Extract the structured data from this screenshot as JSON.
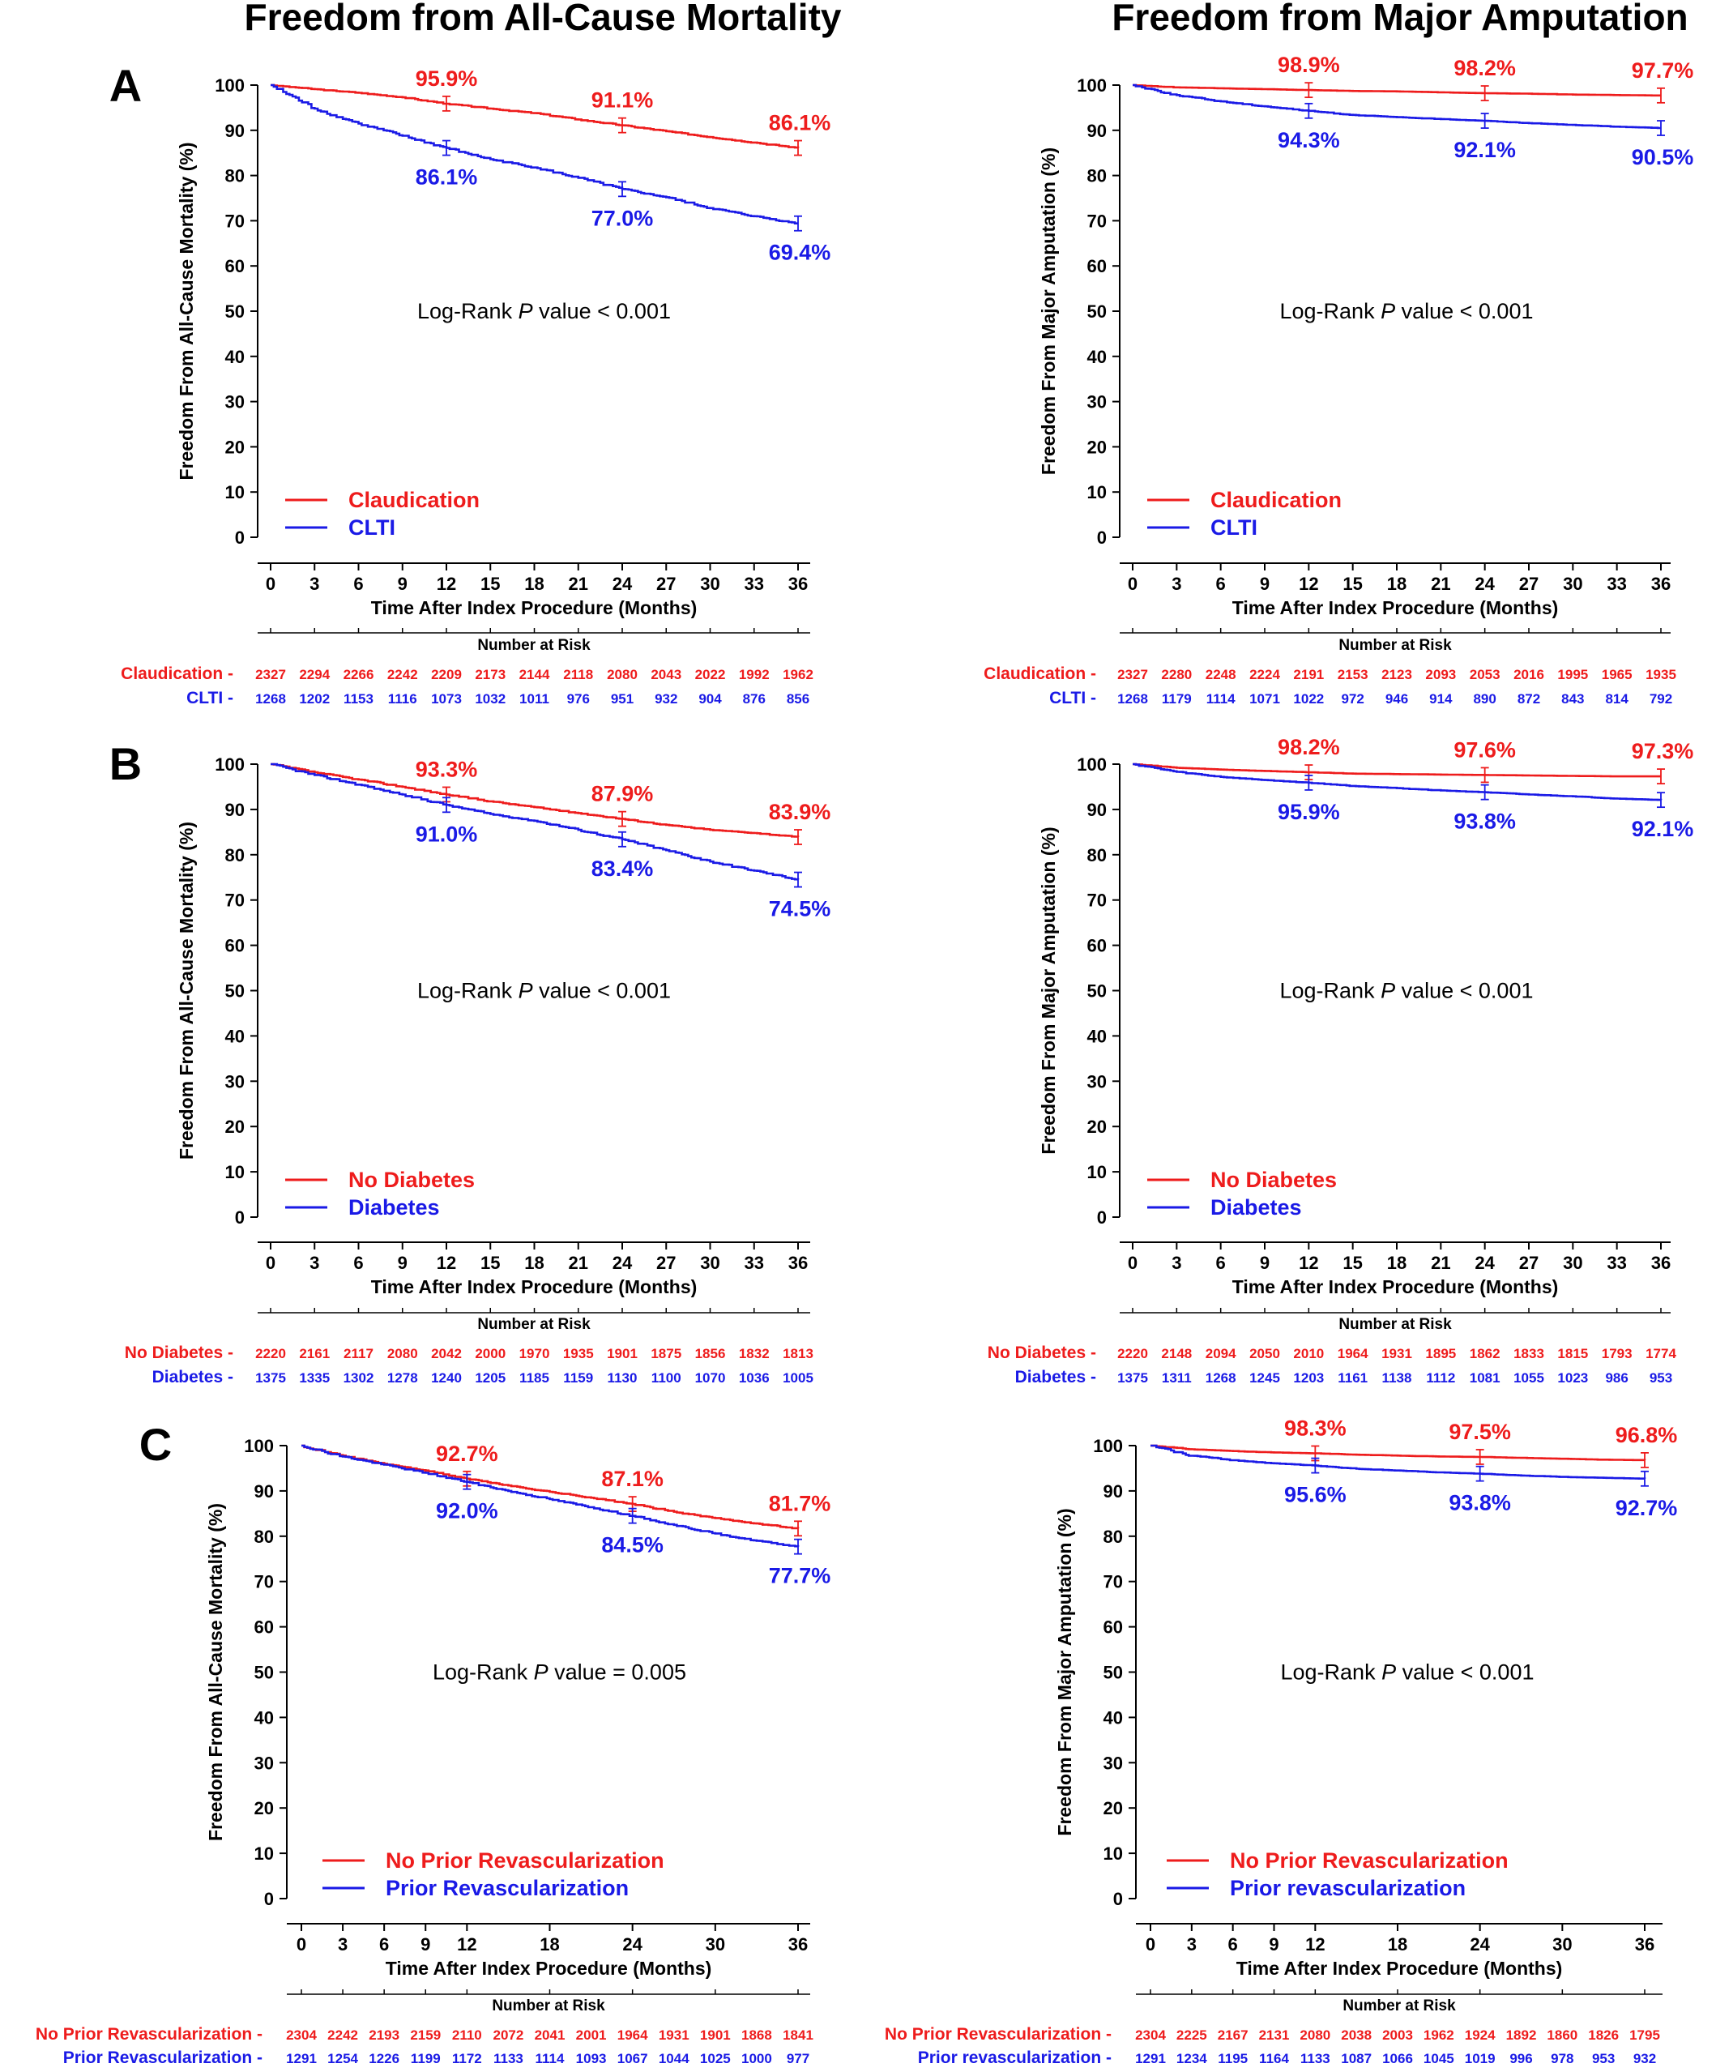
{
  "column_titles": [
    "Freedom from All-Cause Mortality",
    "Freedom from Major Amputation"
  ],
  "panel_letters": [
    "A",
    "B",
    "C"
  ],
  "colors": {
    "red": "#ee1c1c",
    "blue": "#1a1ae6"
  },
  "chart_data": [
    {
      "type": "line",
      "panel": "A",
      "column": "left",
      "ylabel": "Freedom From All-Cause Mortality (%)",
      "xlabel": "Time After Index Procedure (Months)",
      "xlim": [
        0,
        36
      ],
      "ylim": [
        0,
        100
      ],
      "xticks": [
        0,
        3,
        6,
        9,
        12,
        15,
        18,
        21,
        24,
        27,
        30,
        33,
        36
      ],
      "yticks": [
        0,
        10,
        20,
        30,
        40,
        50,
        60,
        70,
        80,
        90,
        100
      ],
      "annotation": {
        "pre": "Log-Rank ",
        "italic": "P",
        "post": " value < 0.001"
      },
      "series": [
        {
          "name": "Claudication",
          "color": "#ee1c1c",
          "x": [
            0,
            3,
            6,
            9,
            12,
            15,
            18,
            21,
            24,
            27,
            30,
            33,
            36
          ],
          "y": [
            100,
            99.1,
            98.3,
            97.3,
            95.9,
            94.8,
            93.8,
            92.4,
            91.1,
            89.8,
            88.5,
            87.3,
            86.1
          ],
          "labels": [
            {
              "x": 12,
              "y": 95.9,
              "text": "95.9%"
            },
            {
              "x": 24,
              "y": 91.1,
              "text": "91.1%"
            },
            {
              "x": 36,
              "y": 86.1,
              "text": "86.1%"
            }
          ],
          "risk": [
            2327,
            2294,
            2266,
            2242,
            2209,
            2173,
            2144,
            2118,
            2080,
            2043,
            2022,
            1992,
            1962
          ]
        },
        {
          "name": "CLTI",
          "color": "#1a1ae6",
          "x": [
            0,
            3,
            6,
            9,
            12,
            15,
            18,
            21,
            24,
            27,
            30,
            33,
            36
          ],
          "y": [
            100,
            94.8,
            91.5,
            88.8,
            86.1,
            83.6,
            81.8,
            79.5,
            77.0,
            75.2,
            72.8,
            71.0,
            69.4
          ],
          "labels": [
            {
              "x": 12,
              "y": 86.1,
              "text": "86.1%"
            },
            {
              "x": 24,
              "y": 77.0,
              "text": "77.0%"
            },
            {
              "x": 36,
              "y": 69.4,
              "text": "69.4%"
            }
          ],
          "risk": [
            1268,
            1202,
            1153,
            1116,
            1073,
            1032,
            1011,
            976,
            951,
            932,
            904,
            876,
            856
          ]
        }
      ],
      "risk_title": "Number at Risk"
    },
    {
      "type": "line",
      "panel": "A",
      "column": "right",
      "ylabel": "Freedom From Major Amputation (%)",
      "xlabel": "Time After Index Procedure (Months)",
      "xlim": [
        0,
        36
      ],
      "ylim": [
        0,
        100
      ],
      "xticks": [
        0,
        3,
        6,
        9,
        12,
        15,
        18,
        21,
        24,
        27,
        30,
        33,
        36
      ],
      "yticks": [
        0,
        10,
        20,
        30,
        40,
        50,
        60,
        70,
        80,
        90,
        100
      ],
      "annotation": {
        "pre": "Log-Rank ",
        "italic": "P",
        "post": " value < 0.001"
      },
      "series": [
        {
          "name": "Claudication",
          "color": "#ee1c1c",
          "x": [
            0,
            3,
            6,
            9,
            12,
            15,
            18,
            21,
            24,
            27,
            30,
            33,
            36
          ],
          "y": [
            100,
            99.5,
            99.3,
            99.1,
            98.9,
            98.7,
            98.6,
            98.4,
            98.2,
            98.1,
            97.9,
            97.8,
            97.7
          ],
          "labels": [
            {
              "x": 12,
              "y": 98.9,
              "text": "98.9%"
            },
            {
              "x": 24,
              "y": 98.2,
              "text": "98.2%"
            },
            {
              "x": 36,
              "y": 97.7,
              "text": "97.7%"
            }
          ],
          "risk": [
            2327,
            2280,
            2248,
            2224,
            2191,
            2153,
            2123,
            2093,
            2053,
            2016,
            1995,
            1965,
            1935
          ]
        },
        {
          "name": "CLTI",
          "color": "#1a1ae6",
          "x": [
            0,
            3,
            6,
            9,
            12,
            15,
            18,
            21,
            24,
            27,
            30,
            33,
            36
          ],
          "y": [
            100,
            97.8,
            96.4,
            95.3,
            94.3,
            93.4,
            92.9,
            92.5,
            92.1,
            91.6,
            91.2,
            90.8,
            90.5
          ],
          "labels": [
            {
              "x": 12,
              "y": 94.3,
              "text": "94.3%"
            },
            {
              "x": 24,
              "y": 92.1,
              "text": "92.1%"
            },
            {
              "x": 36,
              "y": 90.5,
              "text": "90.5%"
            }
          ],
          "risk": [
            1268,
            1179,
            1114,
            1071,
            1022,
            972,
            946,
            914,
            890,
            872,
            843,
            814,
            792
          ]
        }
      ],
      "risk_title": "Number at Risk"
    },
    {
      "type": "line",
      "panel": "B",
      "column": "left",
      "ylabel": "Freedom From All-Cause Mortality (%)",
      "xlabel": "Time After Index Procedure (Months)",
      "xlim": [
        0,
        36
      ],
      "ylim": [
        0,
        100
      ],
      "xticks": [
        0,
        3,
        6,
        9,
        12,
        15,
        18,
        21,
        24,
        27,
        30,
        33,
        36
      ],
      "yticks": [
        0,
        10,
        20,
        30,
        40,
        50,
        60,
        70,
        80,
        90,
        100
      ],
      "annotation": {
        "pre": "Log-Rank ",
        "italic": "P",
        "post": " value < 0.001"
      },
      "series": [
        {
          "name": "No Diabetes",
          "color": "#ee1c1c",
          "x": [
            0,
            3,
            6,
            9,
            12,
            15,
            18,
            21,
            24,
            27,
            30,
            33,
            36
          ],
          "y": [
            100,
            98.2,
            96.6,
            95.0,
            93.3,
            91.8,
            90.5,
            89.2,
            87.9,
            86.6,
            85.5,
            84.8,
            83.9
          ],
          "labels": [
            {
              "x": 12,
              "y": 93.3,
              "text": "93.3%"
            },
            {
              "x": 24,
              "y": 87.9,
              "text": "87.9%"
            },
            {
              "x": 36,
              "y": 83.9,
              "text": "83.9%"
            }
          ],
          "risk": [
            2220,
            2161,
            2117,
            2080,
            2042,
            2000,
            1970,
            1935,
            1901,
            1875,
            1856,
            1832,
            1813
          ]
        },
        {
          "name": "Diabetes",
          "color": "#1a1ae6",
          "x": [
            0,
            3,
            6,
            9,
            12,
            15,
            18,
            21,
            24,
            27,
            30,
            33,
            36
          ],
          "y": [
            100,
            97.6,
            95.5,
            93.3,
            91.0,
            89.0,
            87.5,
            85.5,
            83.4,
            81.0,
            78.5,
            76.5,
            74.5
          ],
          "labels": [
            {
              "x": 12,
              "y": 91.0,
              "text": "91.0%"
            },
            {
              "x": 24,
              "y": 83.4,
              "text": "83.4%"
            },
            {
              "x": 36,
              "y": 74.5,
              "text": "74.5%"
            }
          ],
          "risk": [
            1375,
            1335,
            1302,
            1278,
            1240,
            1205,
            1185,
            1159,
            1130,
            1100,
            1070,
            1036,
            1005
          ]
        }
      ],
      "risk_title": "Number at Risk"
    },
    {
      "type": "line",
      "panel": "B",
      "column": "right",
      "ylabel": "Freedom From Major Amputation (%)",
      "xlabel": "Time After Index Procedure (Months)",
      "xlim": [
        0,
        36
      ],
      "ylim": [
        0,
        100
      ],
      "xticks": [
        0,
        3,
        6,
        9,
        12,
        15,
        18,
        21,
        24,
        27,
        30,
        33,
        36
      ],
      "yticks": [
        0,
        10,
        20,
        30,
        40,
        50,
        60,
        70,
        80,
        90,
        100
      ],
      "annotation": {
        "pre": "Log-Rank ",
        "italic": "P",
        "post": " value < 0.001"
      },
      "series": [
        {
          "name": "No Diabetes",
          "color": "#ee1c1c",
          "x": [
            0,
            3,
            6,
            9,
            12,
            15,
            18,
            21,
            24,
            27,
            30,
            33,
            36
          ],
          "y": [
            100,
            99.2,
            98.8,
            98.5,
            98.2,
            97.9,
            97.8,
            97.7,
            97.6,
            97.5,
            97.4,
            97.3,
            97.3
          ],
          "labels": [
            {
              "x": 12,
              "y": 98.2,
              "text": "98.2%"
            },
            {
              "x": 24,
              "y": 97.6,
              "text": "97.6%"
            },
            {
              "x": 36,
              "y": 97.3,
              "text": "97.3%"
            }
          ],
          "risk": [
            2220,
            2148,
            2094,
            2050,
            2010,
            1964,
            1931,
            1895,
            1862,
            1833,
            1815,
            1793,
            1774
          ]
        },
        {
          "name": "Diabetes",
          "color": "#1a1ae6",
          "x": [
            0,
            3,
            6,
            9,
            12,
            15,
            18,
            21,
            24,
            27,
            30,
            33,
            36
          ],
          "y": [
            100,
            98.3,
            97.2,
            96.5,
            95.9,
            95.2,
            94.7,
            94.2,
            93.8,
            93.3,
            92.9,
            92.4,
            92.1
          ],
          "labels": [
            {
              "x": 12,
              "y": 95.9,
              "text": "95.9%"
            },
            {
              "x": 24,
              "y": 93.8,
              "text": "93.8%"
            },
            {
              "x": 36,
              "y": 92.1,
              "text": "92.1%"
            }
          ],
          "risk": [
            1375,
            1311,
            1268,
            1245,
            1203,
            1161,
            1138,
            1112,
            1081,
            1055,
            1023,
            986,
            953
          ]
        }
      ],
      "risk_title": "Number at Risk"
    },
    {
      "type": "line",
      "panel": "C",
      "column": "left",
      "ylabel": "Freedom From All-Cause Mortality (%)",
      "xlabel": "Time After Index Procedure (Months)",
      "xlim": [
        0,
        36
      ],
      "ylim": [
        0,
        100
      ],
      "xticks": [
        0,
        3,
        6,
        9,
        12,
        18,
        24,
        30,
        36
      ],
      "yticks": [
        0,
        10,
        20,
        30,
        40,
        50,
        60,
        70,
        80,
        90,
        100
      ],
      "annotation": {
        "pre": "Log-Rank ",
        "italic": "P",
        "post": " value = 0.005"
      },
      "series": [
        {
          "name": "No Prior Revascularization",
          "color": "#ee1c1c",
          "x": [
            0,
            3,
            6,
            9,
            12,
            15,
            18,
            21,
            24,
            27,
            30,
            33,
            36
          ],
          "y": [
            100,
            97.8,
            96.0,
            94.5,
            92.7,
            91.2,
            89.8,
            88.5,
            87.1,
            85.4,
            84.0,
            82.8,
            81.7
          ],
          "labels": [
            {
              "x": 12,
              "y": 92.7,
              "text": "92.7%"
            },
            {
              "x": 24,
              "y": 87.1,
              "text": "87.1%"
            },
            {
              "x": 36,
              "y": 81.7,
              "text": "81.7%"
            }
          ],
          "risk": [
            2304,
            2242,
            2193,
            2159,
            2110,
            2072,
            2041,
            2001,
            1964,
            1931,
            1901,
            1868,
            1841
          ]
        },
        {
          "name": "Prior Revascularization",
          "color": "#1a1ae6",
          "x": [
            0,
            3,
            6,
            9,
            12,
            15,
            18,
            21,
            24,
            27,
            30,
            33,
            36
          ],
          "y": [
            100,
            97.6,
            95.8,
            94.0,
            92.0,
            90.0,
            88.2,
            86.4,
            84.5,
            82.5,
            80.6,
            79.0,
            77.7
          ],
          "labels": [
            {
              "x": 12,
              "y": 92.0,
              "text": "92.0%"
            },
            {
              "x": 24,
              "y": 84.5,
              "text": "84.5%"
            },
            {
              "x": 36,
              "y": 77.7,
              "text": "77.7%"
            }
          ],
          "risk": [
            1291,
            1254,
            1226,
            1199,
            1172,
            1133,
            1114,
            1093,
            1067,
            1044,
            1025,
            1000,
            977
          ]
        }
      ],
      "risk_title": "Number at Risk"
    },
    {
      "type": "line",
      "panel": "C",
      "column": "right",
      "ylabel": "Freedom From Major Amputation (%)",
      "xlabel": "Time After Index Procedure (Months)",
      "xlim": [
        0,
        36
      ],
      "ylim": [
        0,
        100
      ],
      "xticks": [
        0,
        3,
        6,
        9,
        12,
        18,
        24,
        30,
        36
      ],
      "yticks": [
        0,
        10,
        20,
        30,
        40,
        50,
        60,
        70,
        80,
        90,
        100
      ],
      "annotation": {
        "pre": "Log-Rank ",
        "italic": "P",
        "post": " value < 0.001"
      },
      "series": [
        {
          "name": "No Prior Revascularization",
          "color": "#ee1c1c",
          "x": [
            0,
            3,
            6,
            9,
            12,
            15,
            18,
            21,
            24,
            27,
            30,
            33,
            36
          ],
          "y": [
            100,
            99.2,
            98.8,
            98.5,
            98.3,
            98.0,
            97.8,
            97.6,
            97.5,
            97.3,
            97.1,
            96.9,
            96.8
          ],
          "labels": [
            {
              "x": 12,
              "y": 98.3,
              "text": "98.3%"
            },
            {
              "x": 24,
              "y": 97.5,
              "text": "97.5%"
            },
            {
              "x": 36,
              "y": 96.8,
              "text": "96.8%"
            }
          ],
          "risk": [
            2304,
            2225,
            2167,
            2131,
            2080,
            2038,
            2003,
            1962,
            1924,
            1892,
            1860,
            1826,
            1795
          ]
        },
        {
          "name": "Prior revascularization",
          "color": "#1a1ae6",
          "x": [
            0,
            3,
            6,
            9,
            12,
            15,
            18,
            21,
            24,
            27,
            30,
            33,
            36
          ],
          "y": [
            100,
            97.8,
            96.8,
            96.1,
            95.6,
            94.9,
            94.5,
            94.1,
            93.8,
            93.4,
            93.1,
            92.9,
            92.7
          ],
          "labels": [
            {
              "x": 12,
              "y": 95.6,
              "text": "95.6%"
            },
            {
              "x": 24,
              "y": 93.8,
              "text": "93.8%"
            },
            {
              "x": 36,
              "y": 92.7,
              "text": "92.7%"
            }
          ],
          "risk": [
            1291,
            1234,
            1195,
            1164,
            1133,
            1087,
            1066,
            1045,
            1019,
            996,
            978,
            953,
            932
          ]
        }
      ],
      "risk_title": "Number at Risk"
    }
  ]
}
